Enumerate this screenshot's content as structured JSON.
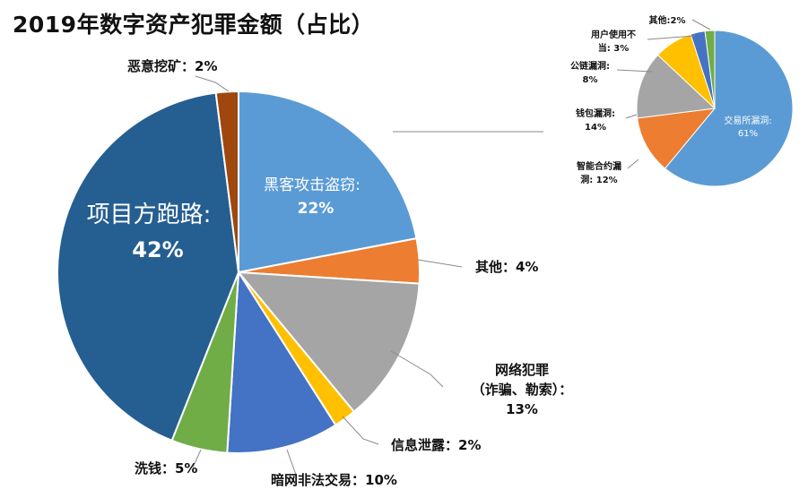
{
  "title": "2019年数字资产犯罪金额（占比）",
  "chart_data": [
    {
      "type": "pie",
      "title": "2019年数字资产犯罪金额（占比）",
      "unit": "%",
      "slices": [
        {
          "label": "黑客攻击盗窃:",
          "value": 22,
          "display": "22%",
          "color": "#5B9BD5"
        },
        {
          "label": "其他：",
          "value": 4,
          "display": "4%",
          "color": "#ED7D31"
        },
        {
          "label": "网络犯罪（诈骗、勒索）：",
          "label_lines": [
            "网络犯罪",
            "（诈骗、勒索）："
          ],
          "value": 13,
          "display": "13%",
          "color": "#A5A5A5"
        },
        {
          "label": "信息泄露：",
          "value": 2,
          "display": "2%",
          "color": "#FFC000"
        },
        {
          "label": "暗网非法交易：",
          "value": 10,
          "display": "10%",
          "color": "#4472C4"
        },
        {
          "label": "洗钱：",
          "value": 5,
          "display": "5%",
          "color": "#70AD47"
        },
        {
          "label": "项目方跑路:",
          "value": 42,
          "display": "42%",
          "color": "#255E91"
        },
        {
          "label": "恶意挖矿：",
          "value": 2,
          "display": "2%",
          "color": "#9E480E"
        }
      ]
    },
    {
      "type": "pie",
      "title": "",
      "unit": "%",
      "parent_slice": "黑客攻击盗窃",
      "slices": [
        {
          "label": "交易所漏洞:",
          "value": 61,
          "display": "61%",
          "color": "#5B9BD5"
        },
        {
          "label": "智能合约漏洞:",
          "label_lines": [
            "智能合约漏",
            "洞: 12%"
          ],
          "value": 12,
          "display": "12%",
          "color": "#ED7D31"
        },
        {
          "label": "钱包漏洞:",
          "value": 14,
          "display": "14%",
          "color": "#A5A5A5"
        },
        {
          "label": "公链漏洞:",
          "value": 8,
          "display": "8%",
          "color": "#FFC000"
        },
        {
          "label": "用户使用不当:",
          "label_lines": [
            "用户使用不",
            "当: 3%"
          ],
          "value": 3,
          "display": "3%",
          "color": "#4472C4"
        },
        {
          "label": "其他:",
          "value": 2,
          "display": "2%",
          "color": "#70AD47"
        }
      ]
    }
  ]
}
